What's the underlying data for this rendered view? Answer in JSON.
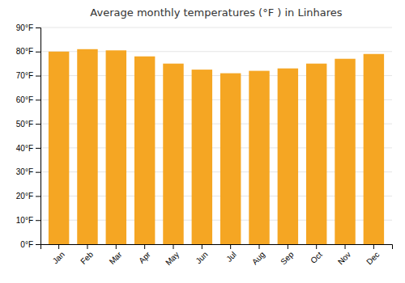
{
  "chart_data": {
    "type": "bar",
    "title": "Average monthly temperatures (°F ) in Linhares",
    "categories": [
      "Jan",
      "Feb",
      "Mar",
      "Apr",
      "May",
      "Jun",
      "Jul",
      "Aug",
      "Sep",
      "Oct",
      "Nov",
      "Dec"
    ],
    "values": [
      80,
      81,
      80.5,
      78,
      75,
      72.5,
      71,
      72,
      73,
      75,
      77,
      79
    ],
    "color": "#F5A623",
    "ylim": [
      0,
      90
    ],
    "yticks": [
      {
        "value": 0,
        "label": "0°F"
      },
      {
        "value": 10,
        "label": "10°F"
      },
      {
        "value": 20,
        "label": "20°F"
      },
      {
        "value": 30,
        "label": "30°F"
      },
      {
        "value": 40,
        "label": "40°F"
      },
      {
        "value": 50,
        "label": "50°F"
      },
      {
        "value": 60,
        "label": "60°F"
      },
      {
        "value": 70,
        "label": "70°F"
      },
      {
        "value": 80,
        "label": "80°F"
      },
      {
        "value": 90,
        "label": "90°F"
      }
    ],
    "grid": true
  }
}
